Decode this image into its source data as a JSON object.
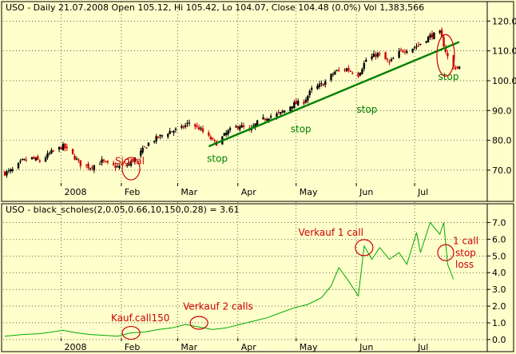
{
  "chart_data": [
    {
      "type": "candlestick",
      "title": "USO - Daily 21.07.2008 Open 105.12, Hi 105.42, Lo 104.07, Close 104.48 (0.0%) Vol 1,383,566",
      "y_ticks": [
        "120.0",
        "110.0",
        "100.0",
        "90.0",
        "80.0",
        "70.0"
      ],
      "ylim": [
        66.5,
        122.5
      ],
      "x_ticks": [
        "2008",
        "Feb",
        "Mar",
        "Apr",
        "May",
        "Jun",
        "Jul"
      ],
      "grid": true,
      "close_path": {
        "dates": [
          "2007-12-03",
          "2007-12-07",
          "2007-12-12",
          "2007-12-17",
          "2007-12-21",
          "2007-12-27",
          "2008-01-02",
          "2008-01-07",
          "2008-01-11",
          "2008-01-16",
          "2008-01-22",
          "2008-01-25",
          "2008-01-30",
          "2008-02-05",
          "2008-02-11",
          "2008-02-15",
          "2008-02-20",
          "2008-02-26",
          "2008-03-03",
          "2008-03-07",
          "2008-03-12",
          "2008-03-17",
          "2008-03-21",
          "2008-03-27",
          "2008-04-02",
          "2008-04-07",
          "2008-04-11",
          "2008-04-17",
          "2008-04-23",
          "2008-04-29",
          "2008-05-05",
          "2008-05-09",
          "2008-05-15",
          "2008-05-21",
          "2008-05-27",
          "2008-06-02",
          "2008-06-06",
          "2008-06-12",
          "2008-06-18",
          "2008-06-24",
          "2008-06-30",
          "2008-07-03",
          "2008-07-09",
          "2008-07-14",
          "2008-07-18",
          "2008-07-21"
        ],
        "values": [
          69,
          70,
          73,
          74,
          73,
          76,
          78,
          75,
          72,
          71,
          73,
          72,
          71,
          72,
          76,
          79,
          81,
          83,
          84,
          86,
          84,
          81,
          79,
          83,
          85,
          83,
          86,
          88,
          89,
          92,
          93,
          97,
          99,
          103,
          104,
          102,
          107,
          109,
          106,
          110,
          111,
          112,
          115,
          116,
          108,
          104.5
        ]
      },
      "trendline": {
        "start": [
          "2008-03-17",
          78
        ],
        "end": [
          "2008-07-24",
          113
        ]
      },
      "annotations": [
        {
          "text": "Signal",
          "date": "2008-02-06",
          "value": 72
        },
        {
          "text": "stop",
          "date": "2008-03-19",
          "value": 76.5
        },
        {
          "text": "stop",
          "date": "2008-05-01",
          "value": 86.5
        },
        {
          "text": "stop",
          "date": "2008-06-04",
          "value": 93
        },
        {
          "text": "stop",
          "date": "2008-07-16",
          "value": 104
        }
      ]
    },
    {
      "type": "line",
      "title": "USO - black_scholes(2,0.05,0.66,10,150,0.28) = 3.61",
      "y_ticks": [
        "7.0",
        "6.0",
        "5.0",
        "4.0",
        "3.0",
        "2.0",
        "1.0",
        "0.0"
      ],
      "ylim": [
        -0.1,
        7.5
      ],
      "x_ticks": [
        "2008",
        "Feb",
        "Mar",
        "Apr",
        "May",
        "Jun",
        "Jul"
      ],
      "grid": true,
      "series": [
        {
          "dates": [
            "2007-12-03",
            "2007-12-12",
            "2007-12-21",
            "2008-01-02",
            "2008-01-09",
            "2008-01-16",
            "2008-01-24",
            "2008-01-30",
            "2008-02-06",
            "2008-02-13",
            "2008-02-20",
            "2008-02-27",
            "2008-03-05",
            "2008-03-12",
            "2008-03-19",
            "2008-03-26",
            "2008-04-02",
            "2008-04-09",
            "2008-04-16",
            "2008-04-23",
            "2008-04-30",
            "2008-05-07",
            "2008-05-14",
            "2008-05-19",
            "2008-05-23",
            "2008-05-28",
            "2008-06-02",
            "2008-06-05",
            "2008-06-09",
            "2008-06-13",
            "2008-06-18",
            "2008-06-23",
            "2008-06-27",
            "2008-07-02",
            "2008-07-04",
            "2008-07-09",
            "2008-07-14",
            "2008-07-16",
            "2008-07-18",
            "2008-07-21"
          ],
          "values": [
            0.2,
            0.3,
            0.35,
            0.55,
            0.4,
            0.3,
            0.25,
            0.2,
            0.4,
            0.45,
            0.6,
            0.7,
            0.9,
            0.75,
            0.6,
            0.7,
            0.9,
            1.1,
            1.3,
            1.6,
            1.9,
            2.1,
            2.5,
            3.2,
            4.3,
            3.5,
            2.6,
            5.6,
            4.8,
            5.5,
            4.8,
            5.2,
            4.5,
            6.4,
            5.2,
            7.0,
            6.3,
            7.0,
            4.5,
            3.61
          ]
        }
      ],
      "annotations": [
        {
          "text": "Kauf.call150",
          "date": "2008-02-06",
          "value": 1.1
        },
        {
          "text": "Verkauf 2 calls",
          "date": "2008-03-12",
          "value": 1.8
        },
        {
          "text": "Verkauf 1 call",
          "date": "2008-06-02",
          "value": 6.2
        },
        {
          "text": "1 call",
          "date": "2008-07-24",
          "value": 5.7
        },
        {
          "text": "stop",
          "date": "2008-07-24",
          "value": 5.0
        },
        {
          "text": "loss",
          "date": "2008-07-24",
          "value": 4.3
        }
      ]
    }
  ],
  "colors": {
    "background": "#ffffcc",
    "grid": "#000000",
    "candle_up": "#000000",
    "candle_down": "#cc0000",
    "trendline": "#008000",
    "option_line": "#00aa00",
    "annotation_red": "#cc0000",
    "annotation_green": "#008000"
  }
}
